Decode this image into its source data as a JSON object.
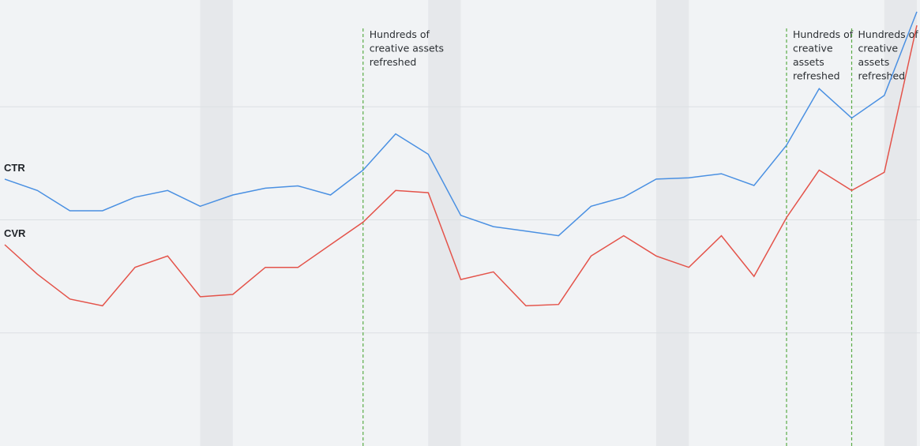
{
  "chart_data": {
    "type": "line",
    "title": "",
    "xlabel": "",
    "ylabel": "",
    "grid": true,
    "legend": "none",
    "x": [
      1,
      2,
      3,
      4,
      5,
      6,
      7,
      8,
      9,
      10,
      11,
      12,
      13,
      14,
      15,
      16,
      17,
      18,
      19,
      20,
      21,
      22,
      23,
      24,
      25,
      26,
      27,
      28,
      29
    ],
    "ylim": [
      0,
      100
    ],
    "series": [
      {
        "name": "CTR",
        "color": "#4a90e2",
        "values": [
          59,
          56.5,
          52,
          52,
          55,
          56.5,
          53,
          55.5,
          57,
          57.5,
          55.5,
          61,
          69,
          64.5,
          51,
          48.5,
          47.5,
          46.5,
          53,
          55,
          59,
          59.3,
          60.2,
          57.6,
          66.5,
          79,
          72.5,
          77.5,
          96
        ]
      },
      {
        "name": "CVR",
        "color": "#e4534a",
        "values": [
          44.5,
          38,
          32.5,
          31,
          39.5,
          42,
          33,
          33.5,
          39.5,
          39.5,
          44.5,
          49.5,
          56.5,
          56,
          36.8,
          38.5,
          31,
          31.3,
          42,
          46.5,
          42,
          39.5,
          46.5,
          37.5,
          50.5,
          61,
          56.5,
          60.5,
          93
        ]
      }
    ],
    "annotations": [
      {
        "x": 12,
        "lines": [
          "Hundreds of",
          "creative assets",
          "refreshed"
        ]
      },
      {
        "x": 25,
        "lines": [
          "Hundreds of",
          "creative",
          "assets",
          "refreshed"
        ]
      },
      {
        "x": 27,
        "lines": [
          "Hundreds of",
          "creative",
          "assets",
          "refreshed"
        ]
      }
    ],
    "shaded_bands": [
      [
        7,
        8
      ],
      [
        14,
        15
      ],
      [
        21,
        22
      ],
      [
        28,
        29
      ]
    ],
    "gridlines": [
      25,
      50,
      75
    ]
  },
  "colors": {
    "background": "#f1f3f5",
    "band": "#e6e8eb",
    "grid": "#dcdfe3",
    "annotation_line": "#5aab46"
  }
}
